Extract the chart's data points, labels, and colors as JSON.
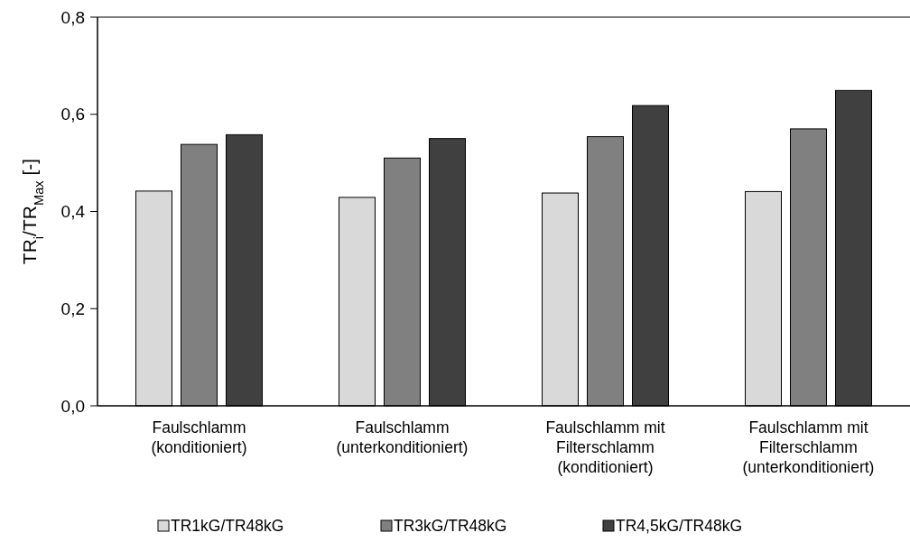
{
  "chart_data": {
    "type": "bar",
    "ylabel": "TR$_{i}$/TR$_{Max}$ [-]",
    "categories": [
      "Faulschlamm\n(konditioniert)",
      "Faulschlamm\n(unterkonditioniert)",
      "Faulschlamm mit\nFilterschlamm\n(konditioniert)",
      "Faulschlamm mit\nFilterschlamm\n(unterkonditioniert)"
    ],
    "series": [
      {
        "name": "TR1kG/TR48kG",
        "color": "#d9d9d9",
        "values": [
          0.442,
          0.429,
          0.438,
          0.441
        ]
      },
      {
        "name": "TR3kG/TR48kG",
        "color": "#808080",
        "values": [
          0.538,
          0.51,
          0.554,
          0.57
        ]
      },
      {
        "name": "TR4,5kG/TR48kG",
        "color": "#404040",
        "values": [
          0.558,
          0.55,
          0.618,
          0.649
        ]
      }
    ],
    "ylim": [
      0,
      0.8
    ],
    "yticks": [
      {
        "value": 0,
        "label": "0,0"
      },
      {
        "value": 0.2,
        "label": "0,2"
      },
      {
        "value": 0.4,
        "label": "0,4"
      },
      {
        "value": 0.6,
        "label": "0,6"
      },
      {
        "value": 0.8,
        "label": "0,8"
      }
    ],
    "grid": false,
    "legend": "bottom"
  }
}
